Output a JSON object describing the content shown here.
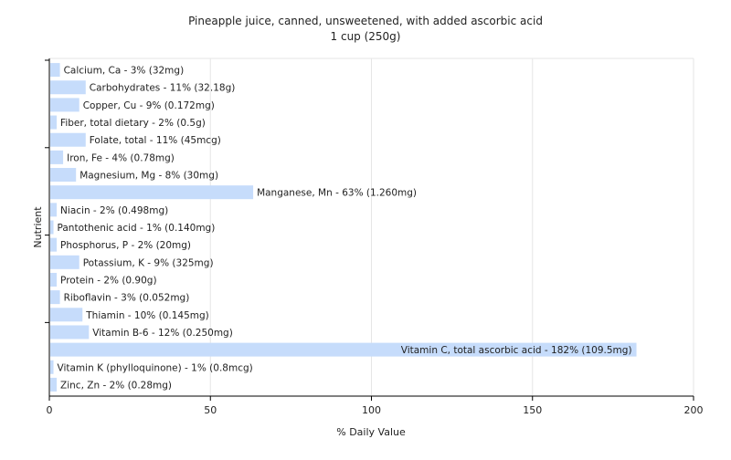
{
  "chart_data": {
    "type": "bar",
    "orientation": "horizontal",
    "title": "Pineapple juice, canned, unsweetened, with added ascorbic acid",
    "subtitle": "1 cup (250g)",
    "xlabel": "% Daily Value",
    "ylabel": "Nutrient",
    "xlim": [
      0,
      200
    ],
    "xticks": [
      0,
      50,
      100,
      150,
      200
    ],
    "grid": true,
    "bar_color": "#c6dcfb",
    "categories": [
      "Calcium, Ca",
      "Carbohydrates",
      "Copper, Cu",
      "Fiber, total dietary",
      "Folate, total",
      "Iron, Fe",
      "Magnesium, Mg",
      "Manganese, Mn",
      "Niacin",
      "Pantothenic acid",
      "Phosphorus, P",
      "Potassium, K",
      "Protein",
      "Riboflavin",
      "Thiamin",
      "Vitamin B-6",
      "Vitamin C, total ascorbic acid",
      "Vitamin K (phylloquinone)",
      "Zinc, Zn"
    ],
    "values": [
      3,
      11,
      9,
      2,
      11,
      4,
      8,
      63,
      2,
      1,
      2,
      9,
      2,
      3,
      10,
      12,
      182,
      1,
      2
    ],
    "labels": [
      "Calcium, Ca - 3% (32mg)",
      "Carbohydrates - 11% (32.18g)",
      "Copper, Cu - 9% (0.172mg)",
      "Fiber, total dietary - 2% (0.5g)",
      "Folate, total - 11% (45mcg)",
      "Iron, Fe - 4% (0.78mg)",
      "Magnesium, Mg - 8% (30mg)",
      "Manganese, Mn - 63% (1.260mg)",
      "Niacin - 2% (0.498mg)",
      "Pantothenic acid - 1% (0.140mg)",
      "Phosphorus, P - 2% (20mg)",
      "Potassium, K - 9% (325mg)",
      "Protein - 2% (0.90g)",
      "Riboflavin - 3% (0.052mg)",
      "Thiamin - 10% (0.145mg)",
      "Vitamin B-6 - 12% (0.250mg)",
      "Vitamin C, total ascorbic acid - 182% (109.5mg)",
      "Vitamin K (phylloquinone) - 1% (0.8mcg)",
      "Zinc, Zn - 2% (0.28mg)"
    ]
  }
}
